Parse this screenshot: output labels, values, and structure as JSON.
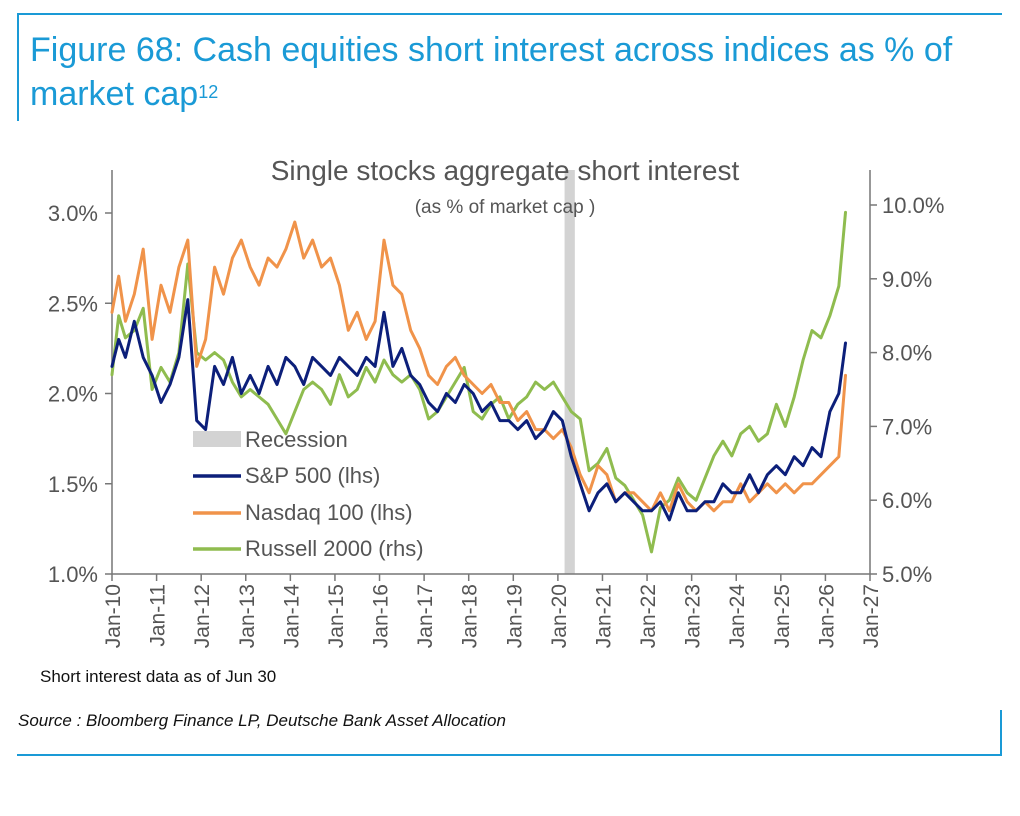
{
  "figure": {
    "title_main": "Figure 68: Cash equities short interest across indices as % of market cap",
    "title_sup": "12",
    "source": "Source : Bloomberg Finance LP, Deutsche Bank Asset Allocation"
  },
  "chart_data": {
    "type": "line",
    "title": "Single stocks aggregate short interest",
    "subtitle": "(as % of market cap )",
    "footnote": "Short interest data as of Jun 30",
    "x_ticks": [
      "Jan-10",
      "Jan-11",
      "Jan-12",
      "Jan-13",
      "Jan-14",
      "Jan-15",
      "Jan-16",
      "Jan-17",
      "Jan-18",
      "Jan-19",
      "Jan-20",
      "Jan-21",
      "Jan-22",
      "Jan-23",
      "Jan-24",
      "Jan-25",
      "Jan-26",
      "Jan-27"
    ],
    "xlim": [
      2010,
      2027
    ],
    "y_left": {
      "ticks": [
        "1.0%",
        "1.5%",
        "2.0%",
        "2.5%",
        "3.0%"
      ],
      "ylim": [
        1.0,
        3.0
      ]
    },
    "y_right": {
      "ticks": [
        "5.0%",
        "6.0%",
        "7.0%",
        "8.0%",
        "9.0%",
        "10.0%"
      ],
      "ylim": [
        5.0,
        10.0
      ]
    },
    "legend_placement": "center-left",
    "recession": {
      "label": "Recession",
      "start": 2020.15,
      "end": 2020.38,
      "color": "#d3d3d3"
    },
    "series": [
      {
        "name": "S&P 500 (lhs)",
        "axis": "left",
        "color": "#0c1f7a",
        "x": [
          2010.0,
          2010.15,
          2010.3,
          2010.5,
          2010.7,
          2010.9,
          2011.1,
          2011.3,
          2011.5,
          2011.7,
          2011.9,
          2012.1,
          2012.3,
          2012.5,
          2012.7,
          2012.9,
          2013.1,
          2013.3,
          2013.5,
          2013.7,
          2013.9,
          2014.1,
          2014.3,
          2014.5,
          2014.7,
          2014.9,
          2015.1,
          2015.3,
          2015.5,
          2015.7,
          2015.9,
          2016.1,
          2016.3,
          2016.5,
          2016.7,
          2016.9,
          2017.1,
          2017.3,
          2017.5,
          2017.7,
          2017.9,
          2018.1,
          2018.3,
          2018.5,
          2018.7,
          2018.9,
          2019.1,
          2019.3,
          2019.5,
          2019.7,
          2019.9,
          2020.1,
          2020.3,
          2020.5,
          2020.7,
          2020.9,
          2021.1,
          2021.3,
          2021.5,
          2021.7,
          2021.9,
          2022.1,
          2022.3,
          2022.5,
          2022.7,
          2022.9,
          2023.1,
          2023.3,
          2023.5,
          2023.7,
          2023.9,
          2024.1,
          2024.3,
          2024.5,
          2024.7,
          2024.9,
          2025.1,
          2025.3,
          2025.5,
          2025.7,
          2025.9,
          2026.1,
          2026.3,
          2026.45
        ],
        "y": [
          2.15,
          2.3,
          2.2,
          2.4,
          2.2,
          2.1,
          1.95,
          2.05,
          2.2,
          2.52,
          1.85,
          1.8,
          2.15,
          2.05,
          2.2,
          2.0,
          2.1,
          2.0,
          2.15,
          2.05,
          2.2,
          2.15,
          2.05,
          2.2,
          2.15,
          2.1,
          2.2,
          2.15,
          2.1,
          2.2,
          2.15,
          2.45,
          2.15,
          2.25,
          2.1,
          2.05,
          1.95,
          1.9,
          2.0,
          1.95,
          2.05,
          2.0,
          1.9,
          1.95,
          1.85,
          1.85,
          1.8,
          1.85,
          1.75,
          1.8,
          1.9,
          1.85,
          1.65,
          1.5,
          1.35,
          1.45,
          1.5,
          1.4,
          1.45,
          1.4,
          1.35,
          1.35,
          1.4,
          1.3,
          1.45,
          1.35,
          1.35,
          1.4,
          1.4,
          1.5,
          1.45,
          1.45,
          1.55,
          1.45,
          1.55,
          1.6,
          1.55,
          1.65,
          1.6,
          1.7,
          1.65,
          1.9,
          2.0,
          2.28
        ]
      },
      {
        "name": "Nasdaq 100 (lhs)",
        "axis": "left",
        "color": "#f0934a",
        "x": [
          2010.0,
          2010.15,
          2010.3,
          2010.5,
          2010.7,
          2010.9,
          2011.1,
          2011.3,
          2011.5,
          2011.7,
          2011.9,
          2012.1,
          2012.3,
          2012.5,
          2012.7,
          2012.9,
          2013.1,
          2013.3,
          2013.5,
          2013.7,
          2013.9,
          2014.1,
          2014.3,
          2014.5,
          2014.7,
          2014.9,
          2015.1,
          2015.3,
          2015.5,
          2015.7,
          2015.9,
          2016.1,
          2016.3,
          2016.5,
          2016.7,
          2016.9,
          2017.1,
          2017.3,
          2017.5,
          2017.7,
          2017.9,
          2018.1,
          2018.3,
          2018.5,
          2018.7,
          2018.9,
          2019.1,
          2019.3,
          2019.5,
          2019.7,
          2019.9,
          2020.1,
          2020.3,
          2020.5,
          2020.7,
          2020.9,
          2021.1,
          2021.3,
          2021.5,
          2021.7,
          2021.9,
          2022.1,
          2022.3,
          2022.5,
          2022.7,
          2022.9,
          2023.1,
          2023.3,
          2023.5,
          2023.7,
          2023.9,
          2024.1,
          2024.3,
          2024.5,
          2024.7,
          2024.9,
          2025.1,
          2025.3,
          2025.5,
          2025.7,
          2025.9,
          2026.1,
          2026.3,
          2026.45
        ],
        "y": [
          2.45,
          2.65,
          2.4,
          2.55,
          2.8,
          2.3,
          2.6,
          2.45,
          2.7,
          2.85,
          2.15,
          2.3,
          2.7,
          2.55,
          2.75,
          2.85,
          2.7,
          2.6,
          2.75,
          2.7,
          2.8,
          2.95,
          2.75,
          2.85,
          2.7,
          2.75,
          2.6,
          2.35,
          2.45,
          2.3,
          2.4,
          2.85,
          2.6,
          2.55,
          2.35,
          2.25,
          2.1,
          2.05,
          2.15,
          2.2,
          2.1,
          2.05,
          2.0,
          2.05,
          1.95,
          1.95,
          1.85,
          1.9,
          1.8,
          1.8,
          1.75,
          1.8,
          1.7,
          1.55,
          1.45,
          1.6,
          1.55,
          1.4,
          1.45,
          1.45,
          1.4,
          1.35,
          1.45,
          1.35,
          1.5,
          1.4,
          1.35,
          1.4,
          1.35,
          1.4,
          1.4,
          1.5,
          1.4,
          1.45,
          1.5,
          1.45,
          1.5,
          1.45,
          1.5,
          1.5,
          1.55,
          1.6,
          1.65,
          2.1
        ]
      },
      {
        "name": "Russell 2000 (rhs)",
        "axis": "right",
        "color": "#8fbc4f",
        "x": [
          2010.0,
          2010.15,
          2010.3,
          2010.5,
          2010.7,
          2010.9,
          2011.1,
          2011.3,
          2011.5,
          2011.7,
          2011.9,
          2012.1,
          2012.3,
          2012.5,
          2012.7,
          2012.9,
          2013.1,
          2013.3,
          2013.5,
          2013.7,
          2013.9,
          2014.1,
          2014.3,
          2014.5,
          2014.7,
          2014.9,
          2015.1,
          2015.3,
          2015.5,
          2015.7,
          2015.9,
          2016.1,
          2016.3,
          2016.5,
          2016.7,
          2016.9,
          2017.1,
          2017.3,
          2017.5,
          2017.7,
          2017.9,
          2018.1,
          2018.3,
          2018.5,
          2018.7,
          2018.9,
          2019.1,
          2019.3,
          2019.5,
          2019.7,
          2019.9,
          2020.1,
          2020.3,
          2020.5,
          2020.7,
          2020.9,
          2021.1,
          2021.3,
          2021.5,
          2021.7,
          2021.9,
          2022.1,
          2022.3,
          2022.5,
          2022.7,
          2022.9,
          2023.1,
          2023.3,
          2023.5,
          2023.7,
          2023.9,
          2024.1,
          2024.3,
          2024.5,
          2024.7,
          2024.9,
          2025.1,
          2025.3,
          2025.5,
          2025.7,
          2025.9,
          2026.1,
          2026.3,
          2026.45
        ],
        "y": [
          7.7,
          8.5,
          8.2,
          8.3,
          8.6,
          7.5,
          7.8,
          7.6,
          8.0,
          9.2,
          8.0,
          7.9,
          8.0,
          7.9,
          7.6,
          7.4,
          7.5,
          7.4,
          7.3,
          7.1,
          6.9,
          7.2,
          7.5,
          7.6,
          7.5,
          7.3,
          7.7,
          7.4,
          7.5,
          7.8,
          7.6,
          7.9,
          7.7,
          7.6,
          7.7,
          7.5,
          7.1,
          7.2,
          7.4,
          7.6,
          7.8,
          7.2,
          7.1,
          7.3,
          7.4,
          7.1,
          7.3,
          7.4,
          7.6,
          7.5,
          7.6,
          7.4,
          7.2,
          7.1,
          6.4,
          6.5,
          6.7,
          6.3,
          6.2,
          6.0,
          5.8,
          5.3,
          5.9,
          6.0,
          6.3,
          6.1,
          6.0,
          6.3,
          6.6,
          6.8,
          6.6,
          6.9,
          7.0,
          6.8,
          6.9,
          7.3,
          7.0,
          7.4,
          7.9,
          8.3,
          8.2,
          8.5,
          8.9,
          9.9
        ]
      }
    ]
  }
}
